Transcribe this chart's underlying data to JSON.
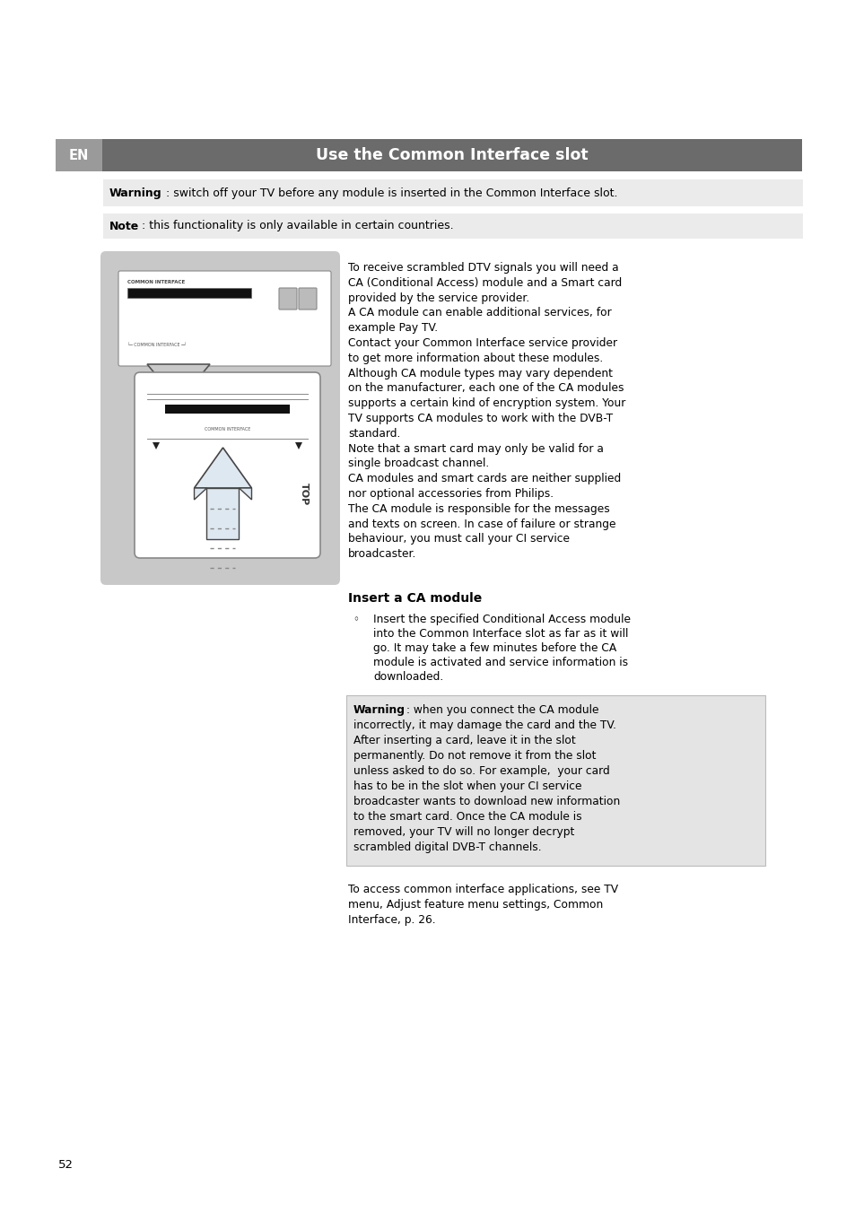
{
  "page_bg": "#ffffff",
  "header_bar_color": "#6b6b6b",
  "header_en_bg": "#9a9a9a",
  "header_en_text": "EN",
  "header_title": "Use the Common Interface slot",
  "header_title_color": "#ffffff",
  "warning_bg": "#ebebeb",
  "body_text_col2": [
    "To receive scrambled DTV signals you will need a",
    "CA (Conditional Access) module and a Smart card",
    "provided by the service provider.",
    "A CA module can enable additional services, for",
    "example Pay TV.",
    "Contact your Common Interface service provider",
    "to get more information about these modules.",
    "Although CA module types may vary dependent",
    "on the manufacturer, each one of the CA modules",
    "supports a certain kind of encryption system. Your",
    "TV supports CA modules to work with the DVB-T",
    "standard.",
    "Note that a smart card may only be valid for a",
    "single broadcast channel.",
    "CA modules and smart cards are neither supplied",
    "nor optional accessories from Philips.",
    "The CA module is responsible for the messages",
    "and texts on screen. In case of failure or strange",
    "behaviour, you must call your CI service",
    "broadcaster."
  ],
  "insert_heading": "Insert a CA module",
  "bullet_text": [
    "Insert the specified Conditional Access module",
    "into the Common Interface slot as far as it will",
    "go. It may take a few minutes before the CA",
    "module is activated and service information is",
    "downloaded."
  ],
  "warning2_bg": "#e4e4e4",
  "warning2_lines": [
    "Warning: when you connect the CA module",
    "incorrectly, it may damage the card and the TV.",
    "After inserting a card, leave it in the slot",
    "permanently. Do not remove it from the slot",
    "unless asked to do so. For example,  your card",
    "has to be in the slot when your CI service",
    "broadcaster wants to download new information",
    "to the smart card. Once the CA module is",
    "removed, your TV will no longer decrypt",
    "scrambled digital DVB-T channels."
  ],
  "footer_text": [
    "To access common interface applications, see TV",
    "menu, Adjust feature menu settings, Common",
    "Interface, p. 26."
  ],
  "page_number": "52",
  "image_bg": "#c8c8c8"
}
